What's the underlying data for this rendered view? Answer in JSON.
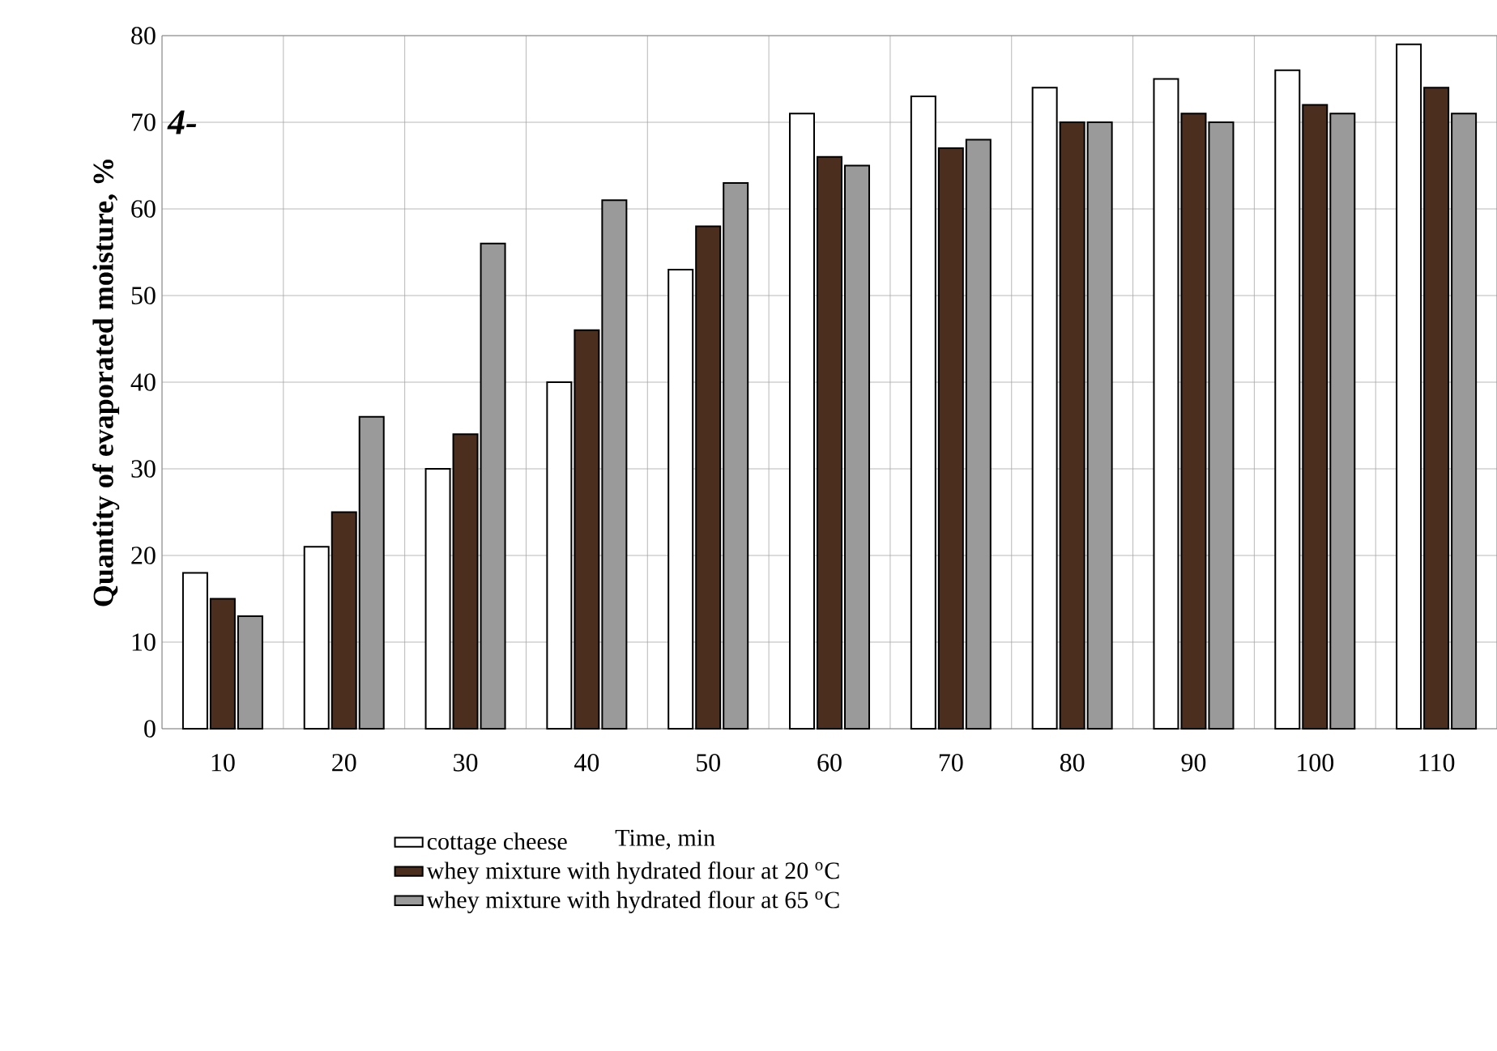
{
  "chart_data": {
    "type": "bar",
    "ylabel": "Quantity of evaporated moisture, %",
    "xlabel": "Time, min",
    "categories": [
      "10",
      "20",
      "30",
      "40",
      "50",
      "60",
      "70",
      "80",
      "90",
      "100",
      "110"
    ],
    "series": [
      {
        "name": "cottage cheese",
        "color": "#ffffff",
        "values": [
          18,
          21,
          30,
          40,
          53,
          71,
          73,
          74,
          75,
          76,
          79
        ]
      },
      {
        "name": "whey mixture with hydrated flour at 20 $^{o}$C",
        "color": "#4b2e1e",
        "values": [
          15,
          25,
          34,
          46,
          58,
          66,
          67,
          70,
          71,
          72,
          74
        ]
      },
      {
        "name": "whey mixture with hydrated flour at 65 $^{o}$C",
        "color": "#9a9a9a",
        "values": [
          13,
          36,
          56,
          61,
          63,
          65,
          68,
          70,
          70,
          71,
          71
        ]
      }
    ],
    "ylim": [
      0,
      80
    ],
    "yticks": [
      0,
      10,
      20,
      30,
      40,
      50,
      60,
      70,
      80
    ],
    "grid": true,
    "legend": "bottom",
    "annotations": [
      "4-"
    ]
  }
}
